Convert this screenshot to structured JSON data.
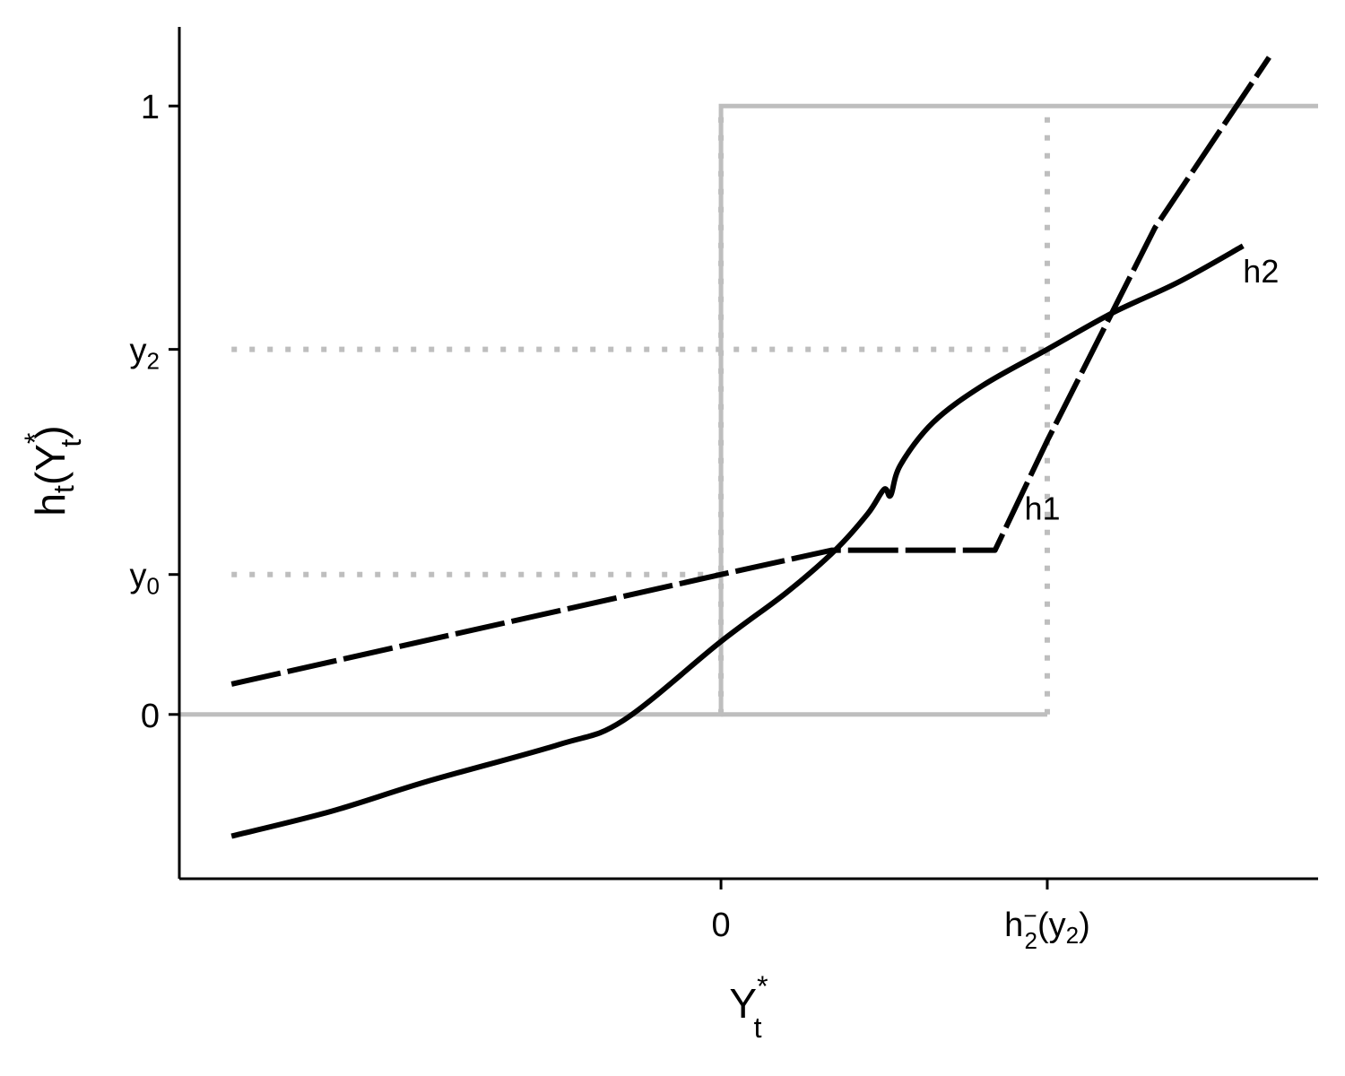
{
  "chart_data": {
    "type": "line",
    "xlabel": {
      "base": "Y",
      "sub": "t",
      "sup": "*"
    },
    "ylabel": {
      "base": "h",
      "sub": "t",
      "open": "(Y",
      "sub2": "t",
      "sup2": "*",
      "close": ")"
    },
    "x_ticks": [
      {
        "value": 0,
        "text": "0"
      },
      {
        "value": 1,
        "text": "h",
        "sub": "2",
        "sup": "−",
        "rest": "(y",
        "rest_sub": "2",
        "rest_close": ")"
      }
    ],
    "y_ticks": [
      {
        "value": 0,
        "text": "0"
      },
      {
        "value": 0.23,
        "text": "y",
        "sub": "0"
      },
      {
        "value": 0.6,
        "text": "y",
        "sub": "2"
      },
      {
        "value": 1,
        "text": "1"
      }
    ],
    "xlim": [
      -1.66,
      1.83
    ],
    "ylim": [
      -0.27,
      1.13
    ],
    "series": [
      {
        "name": "h1",
        "style": "dashed",
        "x": [
          -1.5,
          0,
          0.34,
          0.84,
          1.0,
          1.33,
          1.68
        ],
        "y": [
          0.05,
          0.23,
          0.27,
          0.27,
          0.45,
          0.8,
          1.08
        ]
      },
      {
        "name": "h2",
        "style": "solid",
        "x": [
          -1.5,
          -1.2,
          -0.9,
          -0.5,
          -0.3,
          0,
          0.2,
          0.35,
          0.45,
          0.5,
          0.52,
          0.55,
          0.65,
          0.8,
          1.0,
          1.2,
          1.4,
          1.6
        ],
        "y": [
          -0.2,
          -0.16,
          -0.11,
          -0.05,
          -0.01,
          0.12,
          0.2,
          0.27,
          0.33,
          0.37,
          0.36,
          0.41,
          0.48,
          0.54,
          0.6,
          0.66,
          0.71,
          0.77
        ]
      }
    ],
    "indicator": {
      "x": [
        -1.66,
        0,
        0,
        1.83
      ],
      "y": [
        0,
        0,
        1,
        1
      ]
    },
    "extra_zero_segment_x": [
      0,
      1
    ],
    "ref_lines": {
      "x_values": [
        0,
        1
      ],
      "y_values": [
        0.23,
        0.6
      ]
    },
    "colors": {
      "curve": "#000000",
      "indicator": "#bebebe",
      "reference": "#bebebe",
      "axis": "#000000"
    },
    "grid": false
  }
}
